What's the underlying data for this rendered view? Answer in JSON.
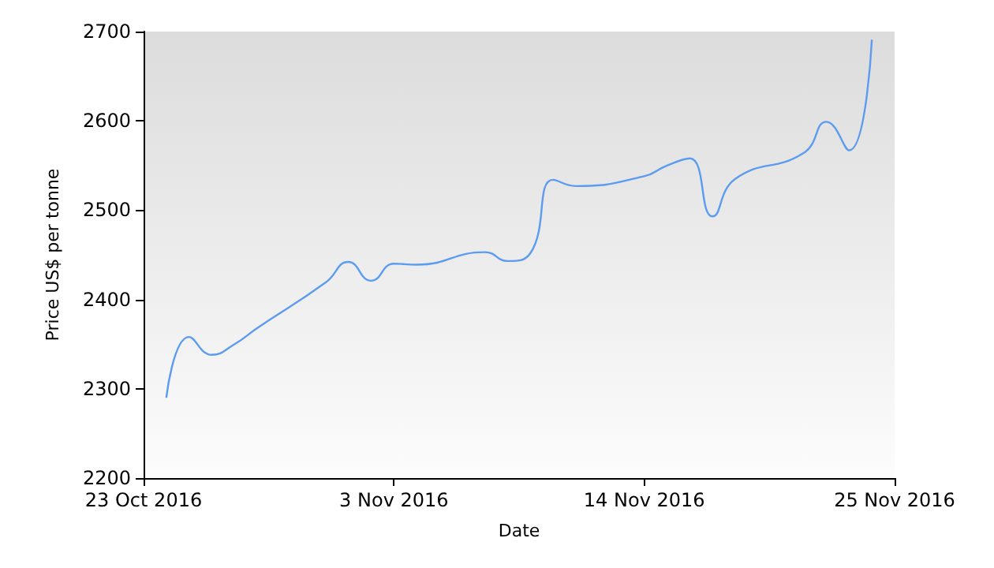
{
  "chart_data": {
    "type": "line",
    "xlabel": "Date",
    "ylabel": "Price US$ per tonne",
    "x": [
      "2016-10-24",
      "2016-10-25",
      "2016-10-26",
      "2016-10-27",
      "2016-10-28",
      "2016-10-31",
      "2016-11-01",
      "2016-11-02",
      "2016-11-03",
      "2016-11-04",
      "2016-11-07",
      "2016-11-08",
      "2016-11-09",
      "2016-11-10",
      "2016-11-11",
      "2016-11-14",
      "2016-11-15",
      "2016-11-16",
      "2016-11-17",
      "2016-11-18",
      "2016-11-21",
      "2016-11-22",
      "2016-11-23",
      "2016-11-24"
    ],
    "series": [
      {
        "color": "#5b9bf0",
        "values": [
          2290,
          2358,
          2338,
          2350,
          2368,
          2419,
          2442,
          2421,
          2440,
          2439,
          2453,
          2443,
          2452,
          2534,
          2527,
          2538,
          2550,
          2558,
          2493,
          2535,
          2564,
          2599,
          2567,
          2691
        ]
      }
    ],
    "xlim": [
      "2016-10-23",
      "2016-11-25"
    ],
    "xticks": [
      {
        "value": "2016-10-23",
        "label": "23 Oct 2016"
      },
      {
        "value": "2016-11-03",
        "label": "3 Nov 2016"
      },
      {
        "value": "2016-11-14",
        "label": "14 Nov 2016"
      },
      {
        "value": "2016-11-25",
        "label": "25 Nov 2016"
      }
    ],
    "ylim": [
      2200,
      2700
    ],
    "yticks": [
      2200,
      2300,
      2400,
      2500,
      2600,
      2700
    ],
    "grid": false,
    "marker": "none",
    "line_style": "solid"
  }
}
